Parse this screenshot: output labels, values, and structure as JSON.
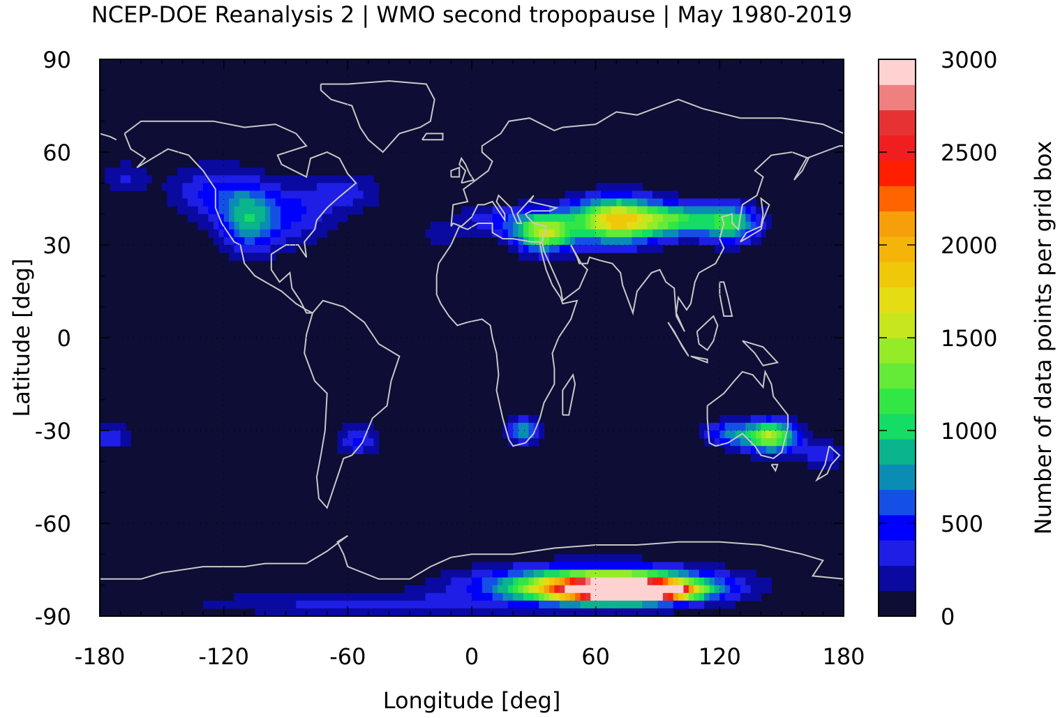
{
  "chart_data": {
    "type": "heatmap",
    "title": "NCEP-DOE Reanalysis 2 | WMO second tropopause | May 1980-2019",
    "xlabel": "Longitude [deg]",
    "ylabel": "Latitude [deg]",
    "colorbar_label": "Number of data points per grid box",
    "xlim": [
      -180,
      180
    ],
    "ylim": [
      -90,
      90
    ],
    "xticks": [
      -180,
      -120,
      -60,
      0,
      60,
      120,
      180
    ],
    "yticks": [
      -90,
      -60,
      -30,
      0,
      30,
      60,
      90
    ],
    "colorbar_ticks": [
      0,
      500,
      1000,
      1500,
      2000,
      2500,
      3000
    ],
    "colorbar_range": [
      0,
      3000
    ],
    "background_color": "#0d0d35",
    "coastline_color": "#c8c8c8",
    "colormap": [
      "#0d0d35",
      "#0a0aa0",
      "#1e1ee6",
      "#0000ff",
      "#1450e6",
      "#0a8cb4",
      "#0ab48c",
      "#14dc64",
      "#32e646",
      "#64eb37",
      "#96eb28",
      "#c8e61e",
      "#e6dc14",
      "#f0c80a",
      "#f5b40a",
      "#f5a00a",
      "#ff6400",
      "#ff1e00",
      "#f01e1e",
      "#e63232",
      "#f08080",
      "#ffd2d2"
    ],
    "hotspots": [
      {
        "region": "North America",
        "lon": -108,
        "lat": 38,
        "value": 800
      },
      {
        "region": "North Pacific/Atlantic band",
        "lon": -60,
        "lat": 48,
        "value": 350
      },
      {
        "region": "Central Asia",
        "lon": 70,
        "lat": 38,
        "value": 1800
      },
      {
        "region": "East Asia",
        "lon": 125,
        "lat": 36,
        "value": 1000
      },
      {
        "region": "Mediterranean",
        "lon": 35,
        "lat": 34,
        "value": 1500
      },
      {
        "region": "Australia",
        "lon": 145,
        "lat": -32,
        "value": 1500
      },
      {
        "region": "South Africa",
        "lon": 25,
        "lat": -30,
        "value": 800
      },
      {
        "region": "South America",
        "lon": -55,
        "lat": -33,
        "value": 450
      },
      {
        "region": "South Pacific",
        "lon": -175,
        "lat": -32,
        "value": 400
      },
      {
        "region": "Antarctica",
        "lon": 80,
        "lat": -82,
        "value": 3000
      }
    ]
  }
}
